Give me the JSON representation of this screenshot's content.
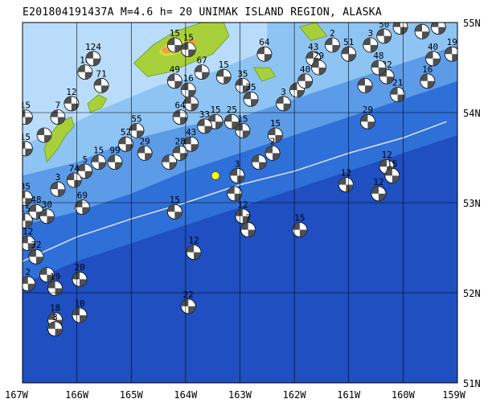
{
  "title": {
    "event_id": "E201804191437A",
    "magnitude": "M=4.6",
    "depth": "h= 20",
    "region": "UNIMAK ISLAND REGION, ALASKA"
  },
  "map": {
    "lon_range": [
      -167,
      -159
    ],
    "lat_range": [
      51,
      55
    ],
    "lon_ticks": [
      {
        "value": -167,
        "label": "167W"
      },
      {
        "value": -166,
        "label": "166W"
      },
      {
        "value": -165,
        "label": "165W"
      },
      {
        "value": -164,
        "label": "164W"
      },
      {
        "value": -163,
        "label": "163W"
      },
      {
        "value": -162,
        "label": "162W"
      },
      {
        "value": -161,
        "label": "161W"
      },
      {
        "value": -160,
        "label": "160W"
      },
      {
        "value": -159,
        "label": "159W"
      }
    ],
    "lat_ticks": [
      {
        "value": 55,
        "label": "55N"
      },
      {
        "value": 54,
        "label": "54N"
      },
      {
        "value": 53,
        "label": "53N"
      },
      {
        "value": 52,
        "label": "52N"
      },
      {
        "value": 51,
        "label": "51N"
      }
    ],
    "colors": {
      "deep_ocean": "#1f4fc0",
      "mid_ocean": "#2f6fd8",
      "shelf": "#5b9be8",
      "shallow": "#8ec4f4",
      "coast": "#b8dcfa",
      "land_low": "#a8d03a",
      "land_mid": "#d8d840",
      "land_high": "#f0a040",
      "trench": "#d9e6f5",
      "beachball": "#505050",
      "main_event": "#ffff00"
    },
    "trench_line": [
      [
        -167,
        52.35
      ],
      [
        -166,
        52.62
      ],
      [
        -165,
        52.82
      ],
      [
        -164,
        53.0
      ],
      [
        -163,
        53.2
      ],
      [
        -162,
        53.35
      ],
      [
        -161,
        53.55
      ],
      [
        -160,
        53.72
      ],
      [
        -159.2,
        53.9
      ]
    ],
    "land_masses": [
      [
        [
          -166.55,
          53.45
        ],
        [
          -166.35,
          53.6
        ],
        [
          -166.2,
          53.75
        ],
        [
          -166.05,
          53.85
        ],
        [
          -166.1,
          53.95
        ],
        [
          -166.3,
          53.9
        ],
        [
          -166.5,
          53.75
        ],
        [
          -166.6,
          53.6
        ]
      ],
      [
        [
          -165.8,
          54.1
        ],
        [
          -165.6,
          54.2
        ],
        [
          -165.45,
          54.15
        ],
        [
          -165.55,
          54.05
        ],
        [
          -165.75,
          54.0
        ]
      ],
      [
        [
          -164.95,
          54.55
        ],
        [
          -164.6,
          54.75
        ],
        [
          -164.2,
          54.9
        ],
        [
          -163.7,
          55.0
        ],
        [
          -163.3,
          55.0
        ],
        [
          -163.2,
          54.85
        ],
        [
          -163.5,
          54.65
        ],
        [
          -163.9,
          54.55
        ],
        [
          -164.3,
          54.45
        ],
        [
          -164.7,
          54.4
        ]
      ],
      [
        [
          -162.75,
          54.5
        ],
        [
          -162.45,
          54.5
        ],
        [
          -162.35,
          54.4
        ],
        [
          -162.6,
          54.35
        ]
      ],
      [
        [
          -161.9,
          54.95
        ],
        [
          -161.6,
          55.0
        ],
        [
          -161.4,
          54.85
        ],
        [
          -161.7,
          54.8
        ]
      ]
    ],
    "main_event": {
      "lon": -163.45,
      "lat": 53.3
    },
    "events": [
      {
        "lon": -166.95,
        "lat": 53.95,
        "label": "15"
      },
      {
        "lon": -166.95,
        "lat": 53.6,
        "label": "15"
      },
      {
        "lon": -166.6,
        "lat": 53.75,
        "label": ""
      },
      {
        "lon": -166.35,
        "lat": 53.95,
        "label": "7"
      },
      {
        "lon": -166.1,
        "lat": 54.1,
        "label": "12"
      },
      {
        "lon": -165.85,
        "lat": 54.45,
        "label": "10"
      },
      {
        "lon": -165.7,
        "lat": 54.6,
        "label": "124"
      },
      {
        "lon": -165.55,
        "lat": 54.3,
        "label": "71"
      },
      {
        "lon": -164.2,
        "lat": 54.75,
        "label": "15"
      },
      {
        "lon": -163.95,
        "lat": 54.7,
        "label": "15"
      },
      {
        "lon": -163.7,
        "lat": 54.45,
        "label": "67"
      },
      {
        "lon": -164.2,
        "lat": 54.35,
        "label": "49"
      },
      {
        "lon": -163.95,
        "lat": 54.25,
        "label": "16"
      },
      {
        "lon": -163.9,
        "lat": 54.1,
        "label": ""
      },
      {
        "lon": -164.1,
        "lat": 53.95,
        "label": "64"
      },
      {
        "lon": -163.3,
        "lat": 54.4,
        "label": "15"
      },
      {
        "lon": -162.95,
        "lat": 54.3,
        "label": "35"
      },
      {
        "lon": -162.8,
        "lat": 54.15,
        "label": "35"
      },
      {
        "lon": -162.55,
        "lat": 54.65,
        "label": "64"
      },
      {
        "lon": -162.2,
        "lat": 54.1,
        "label": "3"
      },
      {
        "lon": -161.95,
        "lat": 54.25,
        "label": ""
      },
      {
        "lon": -161.65,
        "lat": 54.6,
        "label": "43"
      },
      {
        "lon": -161.55,
        "lat": 54.5,
        "label": "29"
      },
      {
        "lon": -161.3,
        "lat": 54.75,
        "label": "2"
      },
      {
        "lon": -161.0,
        "lat": 54.65,
        "label": "51"
      },
      {
        "lon": -160.6,
        "lat": 54.75,
        "label": "3"
      },
      {
        "lon": -160.35,
        "lat": 54.85,
        "label": "50"
      },
      {
        "lon": -160.05,
        "lat": 54.95,
        "label": "50"
      },
      {
        "lon": -159.65,
        "lat": 54.9,
        "label": "41"
      },
      {
        "lon": -159.35,
        "lat": 54.95,
        "label": "22"
      },
      {
        "lon": -159.1,
        "lat": 54.65,
        "label": "19"
      },
      {
        "lon": -159.45,
        "lat": 54.6,
        "label": "40"
      },
      {
        "lon": -159.55,
        "lat": 54.35,
        "label": "16"
      },
      {
        "lon": -160.3,
        "lat": 54.4,
        "label": "32"
      },
      {
        "lon": -160.45,
        "lat": 54.5,
        "label": "48"
      },
      {
        "lon": -160.1,
        "lat": 54.2,
        "label": "21"
      },
      {
        "lon": -160.7,
        "lat": 54.3,
        "label": ""
      },
      {
        "lon": -160.65,
        "lat": 53.9,
        "label": "29"
      },
      {
        "lon": -161.8,
        "lat": 54.35,
        "label": "40"
      },
      {
        "lon": -163.45,
        "lat": 53.9,
        "label": "15"
      },
      {
        "lon": -163.15,
        "lat": 53.9,
        "label": "25"
      },
      {
        "lon": -162.95,
        "lat": 53.8,
        "label": "15"
      },
      {
        "lon": -162.35,
        "lat": 53.75,
        "label": "15"
      },
      {
        "lon": -162.4,
        "lat": 53.55,
        "label": "2"
      },
      {
        "lon": -162.65,
        "lat": 53.45,
        "label": ""
      },
      {
        "lon": -163.65,
        "lat": 53.85,
        "label": "33"
      },
      {
        "lon": -163.9,
        "lat": 53.65,
        "label": "43"
      },
      {
        "lon": -164.1,
        "lat": 53.55,
        "label": "28"
      },
      {
        "lon": -164.3,
        "lat": 53.45,
        "label": ""
      },
      {
        "lon": -164.75,
        "lat": 53.55,
        "label": "29"
      },
      {
        "lon": -164.9,
        "lat": 53.8,
        "label": "55"
      },
      {
        "lon": -165.1,
        "lat": 53.65,
        "label": "52"
      },
      {
        "lon": -165.3,
        "lat": 53.45,
        "label": "99"
      },
      {
        "lon": -165.6,
        "lat": 53.45,
        "label": "15"
      },
      {
        "lon": -165.85,
        "lat": 53.35,
        "label": "5"
      },
      {
        "lon": -166.05,
        "lat": 53.25,
        "label": "74"
      },
      {
        "lon": -166.35,
        "lat": 53.15,
        "label": "3"
      },
      {
        "lon": -165.9,
        "lat": 52.95,
        "label": "69"
      },
      {
        "lon": -164.2,
        "lat": 52.9,
        "label": "15"
      },
      {
        "lon": -163.05,
        "lat": 53.3,
        "label": "3"
      },
      {
        "lon": -163.1,
        "lat": 53.1,
        "label": ""
      },
      {
        "lon": -162.95,
        "lat": 52.85,
        "label": "12"
      },
      {
        "lon": -162.85,
        "lat": 52.7,
        "label": "7"
      },
      {
        "lon": -161.9,
        "lat": 52.7,
        "label": "15"
      },
      {
        "lon": -161.05,
        "lat": 53.2,
        "label": "12"
      },
      {
        "lon": -160.45,
        "lat": 53.1,
        "label": "12"
      },
      {
        "lon": -160.3,
        "lat": 53.4,
        "label": "12"
      },
      {
        "lon": -160.2,
        "lat": 53.3,
        "label": "15"
      },
      {
        "lon": -163.85,
        "lat": 52.45,
        "label": "12"
      },
      {
        "lon": -163.95,
        "lat": 51.85,
        "label": "22"
      },
      {
        "lon": -166.95,
        "lat": 53.05,
        "label": "35"
      },
      {
        "lon": -166.75,
        "lat": 52.9,
        "label": "48"
      },
      {
        "lon": -166.55,
        "lat": 52.85,
        "label": "30"
      },
      {
        "lon": -166.95,
        "lat": 52.8,
        "label": "15"
      },
      {
        "lon": -166.9,
        "lat": 52.55,
        "label": "12"
      },
      {
        "lon": -166.75,
        "lat": 52.4,
        "label": "32"
      },
      {
        "lon": -166.55,
        "lat": 52.2,
        "label": ""
      },
      {
        "lon": -166.9,
        "lat": 52.1,
        "label": "2"
      },
      {
        "lon": -166.4,
        "lat": 52.05,
        "label": "19"
      },
      {
        "lon": -165.95,
        "lat": 52.15,
        "label": "20"
      },
      {
        "lon": -166.4,
        "lat": 51.7,
        "label": "18"
      },
      {
        "lon": -166.4,
        "lat": 51.6,
        "label": "3"
      },
      {
        "lon": -165.95,
        "lat": 51.75,
        "label": "10"
      }
    ]
  }
}
